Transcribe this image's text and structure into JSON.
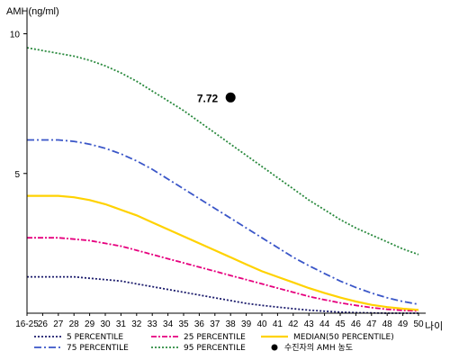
{
  "chart_data": {
    "type": "line",
    "ylabel": "AMH(ng/ml)",
    "xlabel": "나이",
    "y_ticks": [
      10,
      5
    ],
    "ylim": [
      0,
      10.5
    ],
    "categories": [
      "16-25",
      "26",
      "27",
      "28",
      "29",
      "30",
      "31",
      "32",
      "33",
      "34",
      "35",
      "36",
      "37",
      "38",
      "39",
      "40",
      "41",
      "42",
      "43",
      "44",
      "45",
      "46",
      "47",
      "48",
      "49",
      "50"
    ],
    "grid": false,
    "legend_position": "bottom",
    "series": [
      {
        "name": "5 PERCENTILE",
        "color": "#1a1a6b",
        "dash": "2,2",
        "values": [
          1.3,
          1.3,
          1.3,
          1.3,
          1.25,
          1.2,
          1.15,
          1.05,
          0.95,
          0.85,
          0.75,
          0.65,
          0.55,
          0.45,
          0.35,
          0.28,
          0.22,
          0.16,
          0.11,
          0.07,
          0.04,
          0.02,
          0.01,
          0.0,
          0.0,
          0.0
        ]
      },
      {
        "name": "25 PERCENTILE",
        "color": "#e6007e",
        "dash": "6,2,2,2",
        "values": [
          2.7,
          2.7,
          2.7,
          2.65,
          2.6,
          2.5,
          2.4,
          2.25,
          2.1,
          1.95,
          1.8,
          1.65,
          1.5,
          1.35,
          1.2,
          1.05,
          0.9,
          0.75,
          0.6,
          0.48,
          0.37,
          0.28,
          0.2,
          0.14,
          0.1,
          0.08
        ]
      },
      {
        "name": "MEDIAN(50 PERCENTILE)",
        "color": "#ffd200",
        "dash": "",
        "values": [
          4.2,
          4.2,
          4.2,
          4.15,
          4.05,
          3.9,
          3.7,
          3.5,
          3.25,
          3.0,
          2.75,
          2.5,
          2.25,
          2.0,
          1.75,
          1.5,
          1.3,
          1.1,
          0.9,
          0.72,
          0.56,
          0.42,
          0.3,
          0.22,
          0.16,
          0.12
        ]
      },
      {
        "name": "75 PERCENTILE",
        "color": "#3a56c8",
        "dash": "8,3,2,3",
        "values": [
          6.2,
          6.2,
          6.2,
          6.15,
          6.05,
          5.9,
          5.7,
          5.45,
          5.15,
          4.8,
          4.45,
          4.1,
          3.75,
          3.4,
          3.05,
          2.7,
          2.35,
          2.0,
          1.7,
          1.42,
          1.15,
          0.92,
          0.72,
          0.55,
          0.42,
          0.32
        ]
      },
      {
        "name": "95 PERCENTILE",
        "color": "#2a8a3e",
        "dash": "2,2",
        "values": [
          9.5,
          9.4,
          9.3,
          9.2,
          9.05,
          8.85,
          8.6,
          8.3,
          7.95,
          7.6,
          7.25,
          6.85,
          6.45,
          6.05,
          5.65,
          5.25,
          4.85,
          4.45,
          4.05,
          3.7,
          3.35,
          3.05,
          2.8,
          2.55,
          2.3,
          2.1
        ]
      }
    ],
    "marker": {
      "label": "7.72",
      "name": "수진자의 AMH 농도",
      "category": "38",
      "value": 7.72,
      "color": "#000000"
    }
  }
}
